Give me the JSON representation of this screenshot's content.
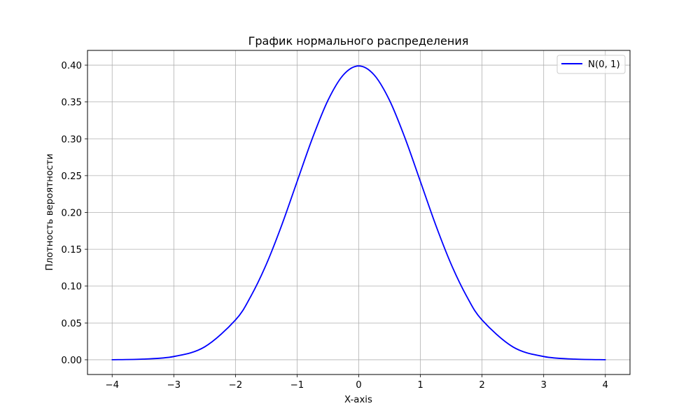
{
  "chart_data": {
    "type": "line",
    "title": "График нормального распределения",
    "xlabel": "X-axis",
    "ylabel": "Плотность вероятности",
    "xlim": [
      -4.4,
      4.4
    ],
    "ylim": [
      -0.02,
      0.42
    ],
    "x_ticks": [
      -4,
      -3,
      -2,
      -1,
      0,
      1,
      2,
      3,
      4
    ],
    "x_tick_labels": [
      "−4",
      "−3",
      "−2",
      "−1",
      "0",
      "1",
      "2",
      "3",
      "4"
    ],
    "y_ticks": [
      0.0,
      0.05,
      0.1,
      0.15,
      0.2,
      0.25,
      0.3,
      0.35,
      0.4
    ],
    "y_tick_labels": [
      "0.00",
      "0.05",
      "0.10",
      "0.15",
      "0.20",
      "0.25",
      "0.30",
      "0.35",
      "0.40"
    ],
    "grid": true,
    "legend_position": "top-right",
    "series": [
      {
        "name": "N(0, 1)",
        "color": "#0000ff",
        "x": [
          -4.0,
          -3.5,
          -3.0,
          -2.5,
          -2.0,
          -1.75,
          -1.5,
          -1.25,
          -1.0,
          -0.75,
          -0.5,
          -0.25,
          0.0,
          0.25,
          0.5,
          0.75,
          1.0,
          1.25,
          1.5,
          1.75,
          2.0,
          2.5,
          3.0,
          3.5,
          4.0
        ],
        "y": [
          0.0001,
          0.0009,
          0.0044,
          0.0175,
          0.054,
          0.0863,
          0.1295,
          0.1826,
          0.242,
          0.3011,
          0.3521,
          0.3867,
          0.3989,
          0.3867,
          0.3521,
          0.3011,
          0.242,
          0.1826,
          0.1295,
          0.0863,
          0.054,
          0.0175,
          0.0044,
          0.0009,
          0.0001
        ]
      }
    ]
  }
}
